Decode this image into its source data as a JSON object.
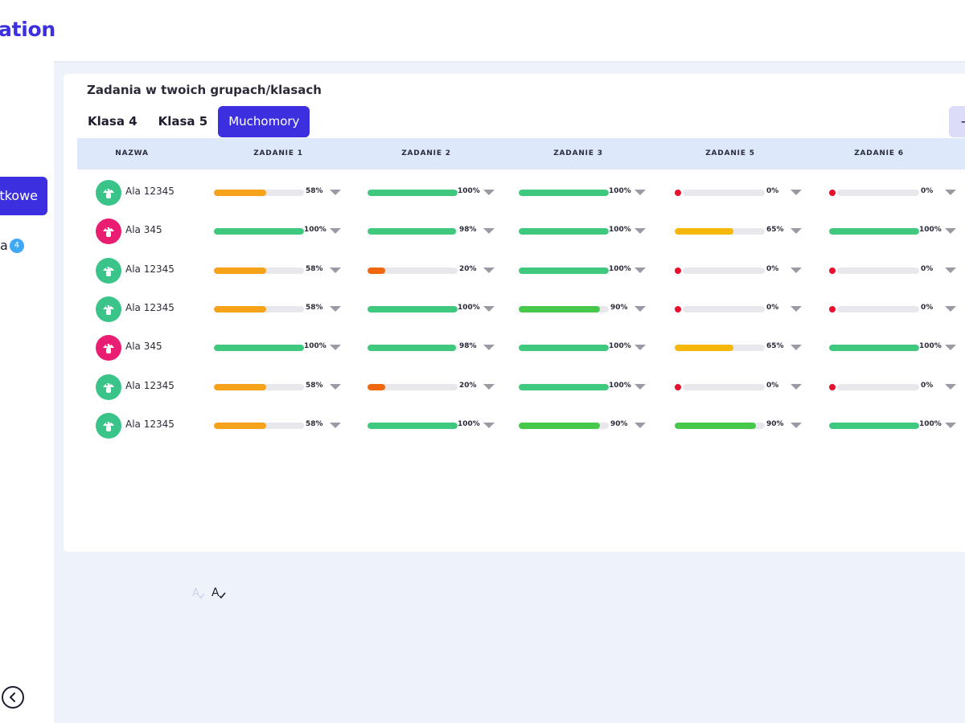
{
  "brand": {
    "partial_title": "ation",
    "color": "#3b2fe0"
  },
  "sidebar": {
    "active_item_label": "tkowe",
    "item_label": "a",
    "item_badge": "4"
  },
  "card": {
    "title": "Zadania w twoich grupach/klasach",
    "tabs": [
      {
        "label": "Klasa 4",
        "active": false
      },
      {
        "label": "Klasa 5",
        "active": false
      },
      {
        "label": "Muchomory",
        "active": true
      }
    ],
    "add_label": "+"
  },
  "table": {
    "columns": [
      "NAZWA",
      "ZADANIE 1",
      "ZADANIE 2",
      "ZADANIE 3",
      "ZADANIE 5",
      "ZADANIE 6"
    ],
    "rows": [
      {
        "name": "Ala 12345",
        "avatar": "green",
        "values": [
          58,
          100,
          100,
          0,
          0
        ],
        "labels": [
          "58%",
          "100%",
          "100%",
          "0%",
          "0%"
        ]
      },
      {
        "name": "Ala 345",
        "avatar": "pink",
        "values": [
          100,
          98,
          100,
          65,
          100
        ],
        "labels": [
          "100%",
          "98%",
          "100%",
          "65%",
          "100%"
        ]
      },
      {
        "name": "Ala 12345",
        "avatar": "green",
        "values": [
          58,
          20,
          100,
          0,
          0
        ],
        "labels": [
          "58%",
          "20%",
          "100%",
          "0%",
          "0%"
        ]
      },
      {
        "name": "Ala 12345",
        "avatar": "green",
        "values": [
          58,
          100,
          90,
          0,
          0
        ],
        "labels": [
          "58%",
          "100%",
          "90%",
          "0%",
          "0%"
        ]
      },
      {
        "name": "Ala 345",
        "avatar": "pink",
        "values": [
          100,
          98,
          100,
          65,
          100
        ],
        "labels": [
          "100%",
          "98%",
          "100%",
          "65%",
          "100%"
        ]
      },
      {
        "name": "Ala 12345",
        "avatar": "green",
        "values": [
          58,
          20,
          100,
          0,
          0
        ],
        "labels": [
          "58%",
          "20%",
          "100%",
          "0%",
          "0%"
        ]
      },
      {
        "name": "Ala 12345",
        "avatar": "green",
        "values": [
          58,
          100,
          90,
          90,
          100
        ],
        "labels": [
          "58%",
          "100%",
          "90%",
          "90%",
          "100%"
        ]
      }
    ]
  },
  "colors": {
    "full": "#3ec97e",
    "high": "#46c94a",
    "medium": "#f5b70a",
    "mid": "#f7a21b",
    "low": "#f0670f",
    "zero": "#e8112d",
    "track": "#e8e8ec"
  },
  "icons": {
    "collapse": "chevron-left-circle-icon",
    "spellcheck_off": "spellcheck-off-icon",
    "spellcheck_on": "spellcheck-icon",
    "avatar": "mushroom-avatar-icon",
    "dropdown": "caret-down-icon"
  }
}
